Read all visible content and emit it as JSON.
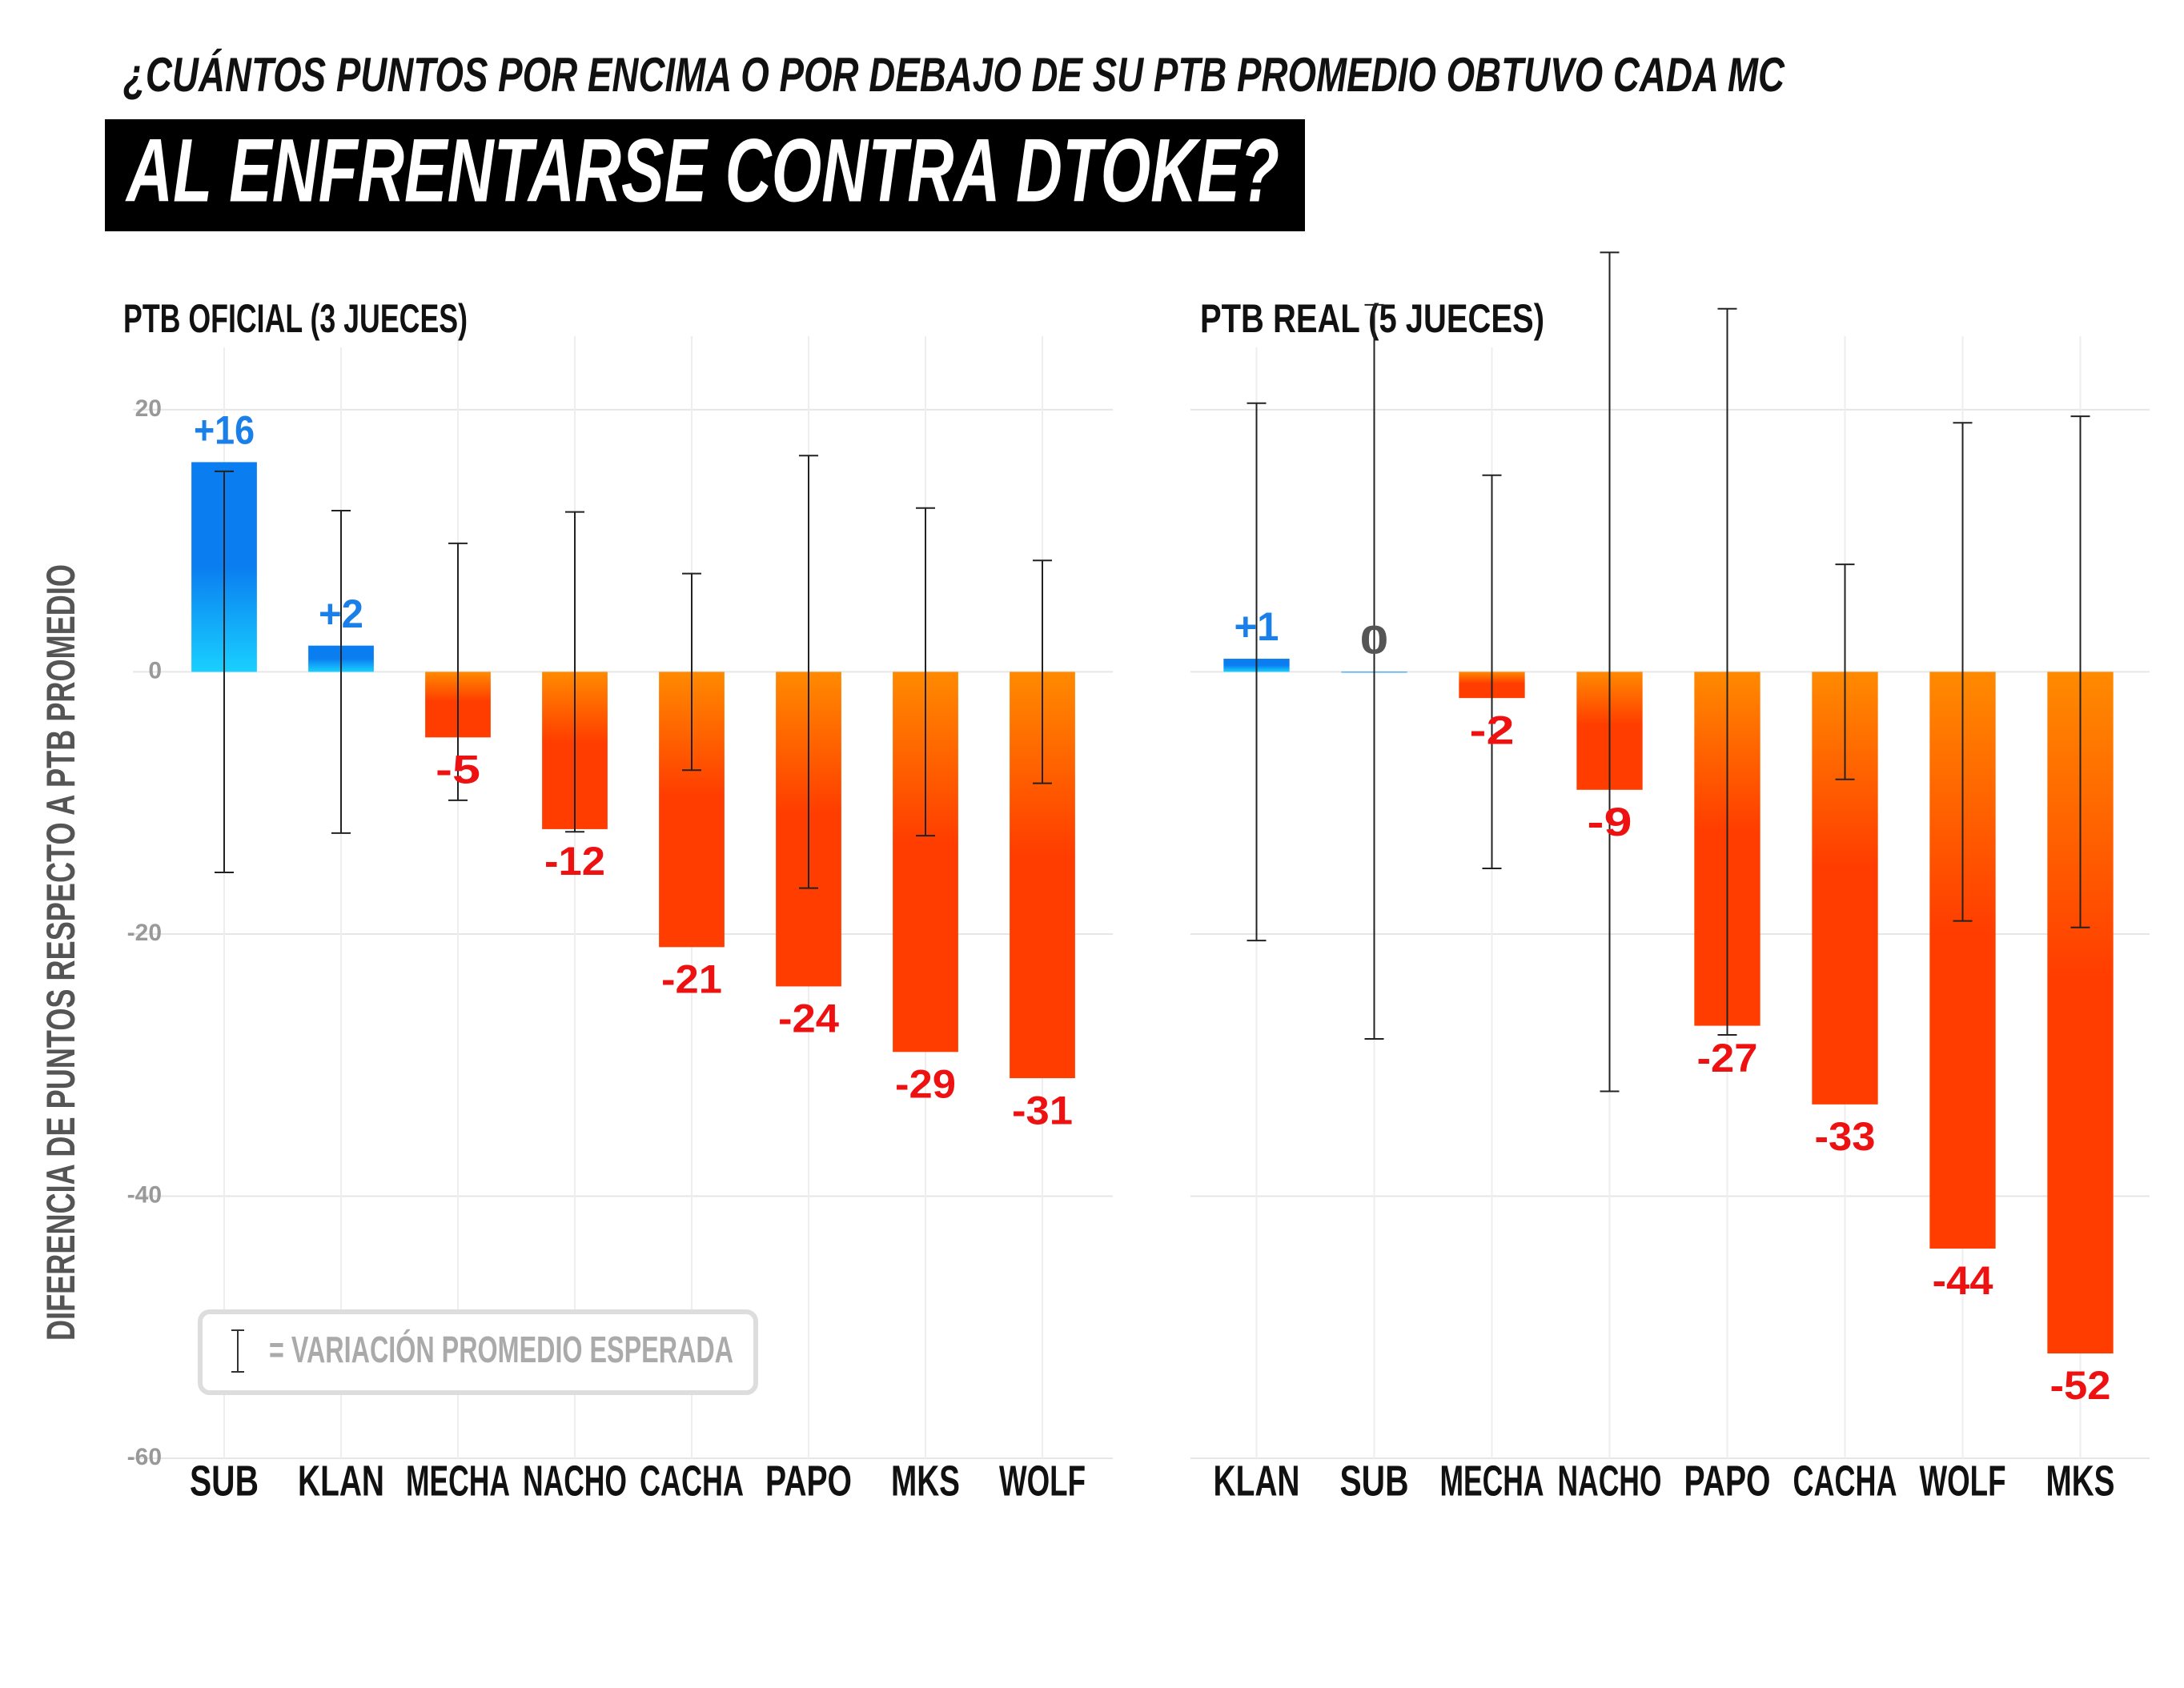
{
  "subtitle": "¿CUÁNTOS PUNTOS POR ENCIMA O POR DEBAJO DE SU PTB PROMEDIO OBTUVO CADA MC",
  "title": "AL ENFRENTARSE CONTRA DTOKE?",
  "y_label": "DIFERENCIA DE PUNTOS RESPECTO A PTB PROMEDIO",
  "legend_label": "= VARIACIÓN PROMEDIO ESPERADA",
  "chart_data": [
    {
      "type": "bar",
      "title": "PTB OFICIAL (3 JUECES)",
      "categories": [
        "SUB",
        "KLAN",
        "MECHA",
        "NACHO",
        "CACHA",
        "PAPO",
        "MKS",
        "WOLF"
      ],
      "values": [
        16,
        2,
        -5,
        -12,
        -21,
        -24,
        -29,
        -31
      ],
      "value_labels": [
        "+16",
        "+2",
        "-5",
        "-12",
        "-21",
        "-24",
        "-29",
        "-31"
      ],
      "errors": [
        15.3,
        12.3,
        9.8,
        12.2,
        7.5,
        16.5,
        12.5,
        8.5
      ],
      "positive_color": "#0a7ef0",
      "negative_color": "#ff3d00",
      "ylim": [
        -60,
        25
      ],
      "yticks": [
        20,
        0,
        -20,
        -40,
        -60
      ],
      "grid": true,
      "show_tick_labels": true
    },
    {
      "type": "bar",
      "title": "PTB REAL (5 JUECES)",
      "categories": [
        "KLAN",
        "SUB",
        "MECHA",
        "NACHO",
        "PAPO",
        "CACHA",
        "WOLF",
        "MKS"
      ],
      "values": [
        1,
        0,
        -2,
        -9,
        -27,
        -33,
        -44,
        -52
      ],
      "value_labels": [
        "+1",
        "0",
        "-2",
        "-9",
        "-27",
        "-33",
        "-44",
        "-52"
      ],
      "errors": [
        20.5,
        28,
        15,
        32,
        27.7,
        8.2,
        19,
        19.5
      ],
      "positive_color": "#0a7ef0",
      "negative_color": "#ff3d00",
      "ylim": [
        -60,
        25
      ],
      "yticks": [
        20,
        0,
        -20,
        -40,
        -60
      ],
      "grid": true,
      "show_tick_labels": false
    }
  ]
}
